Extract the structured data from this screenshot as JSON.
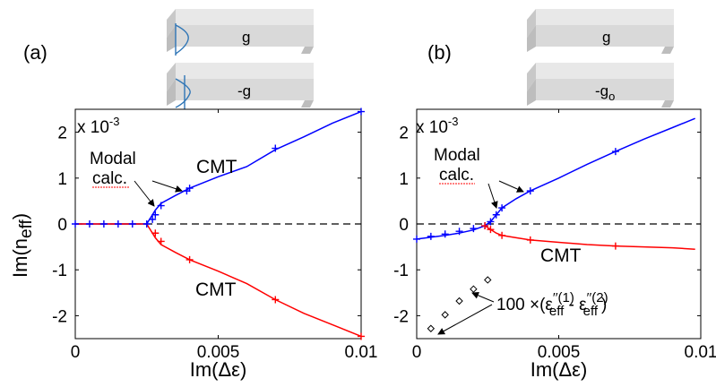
{
  "panels": [
    {
      "panel_label": "(a)",
      "plates": [
        {
          "label": "g",
          "has_mode_profile": true
        },
        {
          "label": "-g",
          "has_mode_profile": true
        }
      ],
      "exponent_base": "x 10",
      "exponent_power": "-3",
      "ylabel_main": "Im(n",
      "ylabel_sub": "eff",
      "ylabel_close": ")",
      "annotations": {
        "modal_line1": "Modal",
        "modal_line2": "calc.",
        "cmt_upper": "CMT",
        "cmt_lower": "CMT"
      }
    },
    {
      "panel_label": "(b)",
      "plates": [
        {
          "label": "g",
          "has_mode_profile": false
        },
        {
          "label": "-g",
          "sub": "o",
          "has_mode_profile": false
        }
      ],
      "exponent_base": "x 10",
      "exponent_power": "-3",
      "annotations": {
        "modal_line1": "Modal",
        "modal_line2": "calc.",
        "cmt_lower": "CMT",
        "diff_prefix": "100 ×(",
        "diff_eps1": "ε",
        "diff_sup1": "′′(1)",
        "diff_sub1": "eff",
        "diff_minus": " - ",
        "diff_eps2": "ε",
        "diff_sup2": "′′(2)",
        "diff_sub2": "eff",
        "diff_close": ")"
      }
    }
  ],
  "colors": {
    "upper_branch": "#0000ff",
    "lower_branch": "#ff0000",
    "zero_line": "#000000",
    "diamond": "#000000",
    "plate_fill": "#d9d9d9",
    "mode_profile": "#2e75b6"
  },
  "chart_data": [
    {
      "type": "line",
      "xlabel": "Im(Δε)",
      "ylabel": "Im(neff)",
      "xlim": [
        0,
        0.01
      ],
      "ylim": [
        -2.5,
        2.5
      ],
      "y_scale_note": "x 10^-3",
      "x_ticks": [
        0,
        0.005,
        0.01
      ],
      "x_tick_labels": [
        "0",
        "0.005",
        "0.01"
      ],
      "y_ticks": [
        -2,
        -1,
        0,
        1,
        2
      ],
      "y_tick_labels": [
        "-2",
        "-1",
        "0",
        "1",
        "2"
      ],
      "zero_line": true,
      "cmt_upper": {
        "x": [
          0,
          0.0025,
          0.00255,
          0.0026,
          0.0027,
          0.0028,
          0.003,
          0.0035,
          0.004,
          0.005,
          0.006,
          0.007,
          0.008,
          0.009,
          0.01
        ],
        "y": [
          0,
          0,
          0.05,
          0.1,
          0.2,
          0.3,
          0.45,
          0.62,
          0.78,
          1.03,
          1.25,
          1.62,
          1.9,
          2.2,
          2.45
        ]
      },
      "cmt_lower": {
        "x": [
          0,
          0.0025,
          0.00255,
          0.0026,
          0.0027,
          0.0028,
          0.003,
          0.0035,
          0.004,
          0.005,
          0.006,
          0.007,
          0.008,
          0.009,
          0.01
        ],
        "y": [
          0,
          0,
          -0.05,
          -0.1,
          -0.2,
          -0.3,
          -0.45,
          -0.62,
          -0.78,
          -1.03,
          -1.3,
          -1.65,
          -1.95,
          -2.2,
          -2.45
        ]
      },
      "modal_upper": {
        "x": [
          0,
          0.0005,
          0.001,
          0.0015,
          0.002,
          0.0025,
          0.0027,
          0.0028,
          0.003,
          0.0039,
          0.004,
          0.007,
          0.01
        ],
        "y": [
          0,
          0,
          0,
          0,
          0,
          0,
          0.1,
          0.2,
          0.4,
          0.72,
          0.78,
          1.65,
          2.45
        ]
      },
      "modal_lower": {
        "x": [
          0.0028,
          0.003,
          0.004,
          0.007,
          0.01
        ],
        "y": [
          -0.2,
          -0.38,
          -0.78,
          -1.65,
          -2.45
        ]
      }
    },
    {
      "type": "line",
      "xlabel": "Im(Δε)",
      "ylabel": "",
      "xlim": [
        0,
        0.01
      ],
      "ylim": [
        -2.5,
        2.5
      ],
      "y_scale_note": "x 10^-3",
      "x_ticks": [
        0,
        0.005,
        0.01
      ],
      "x_tick_labels": [
        "0",
        "0.005",
        "0.01"
      ],
      "y_ticks": [
        -2,
        -1,
        0,
        1,
        2
      ],
      "y_tick_labels": [
        "-2",
        "-1",
        "0",
        "1",
        "2"
      ],
      "zero_line": true,
      "cmt_upper": {
        "x": [
          0,
          0.001,
          0.0015,
          0.002,
          0.0024,
          0.0026,
          0.0028,
          0.003,
          0.0035,
          0.004,
          0.005,
          0.006,
          0.007,
          0.008,
          0.009,
          0.0098
        ],
        "y": [
          -0.33,
          -0.25,
          -0.2,
          -0.13,
          -0.04,
          0.05,
          0.2,
          0.35,
          0.55,
          0.72,
          1.0,
          1.3,
          1.58,
          1.85,
          2.1,
          2.3
        ]
      },
      "cmt_lower": {
        "x": [
          0.0024,
          0.0026,
          0.0028,
          0.003,
          0.0035,
          0.004,
          0.005,
          0.006,
          0.007,
          0.008,
          0.009,
          0.0098
        ],
        "y": [
          -0.04,
          -0.12,
          -0.2,
          -0.25,
          -0.3,
          -0.35,
          -0.4,
          -0.45,
          -0.48,
          -0.5,
          -0.52,
          -0.55
        ]
      },
      "modal_upper": {
        "x": [
          0,
          0.0005,
          0.001,
          0.0015,
          0.002,
          0.0024,
          0.0026,
          0.0028,
          0.003,
          0.004,
          0.007
        ],
        "y": [
          -0.33,
          -0.27,
          -0.22,
          -0.16,
          -0.1,
          -0.04,
          0.05,
          0.2,
          0.35,
          0.72,
          1.58
        ]
      },
      "modal_lower": {
        "x": [
          0.0024,
          0.0026,
          0.003,
          0.004,
          0.007
        ],
        "y": [
          -0.04,
          -0.12,
          -0.25,
          -0.35,
          -0.48
        ]
      },
      "diff_diamonds": {
        "x": [
          0.0005,
          0.001,
          0.0015,
          0.002,
          0.0025
        ],
        "y": [
          -2.28,
          -1.98,
          -1.68,
          -1.42,
          -1.22
        ]
      }
    }
  ]
}
